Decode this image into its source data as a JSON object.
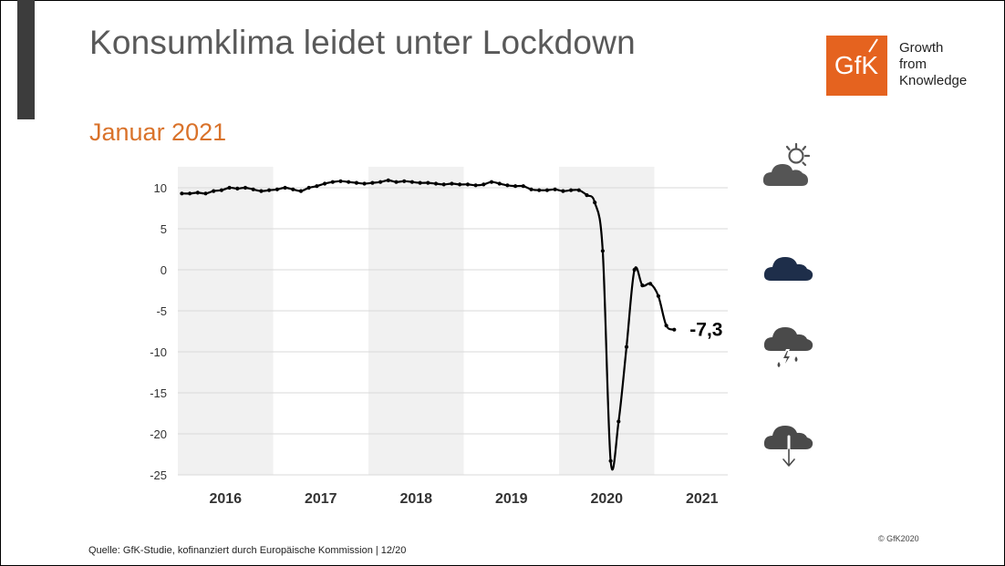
{
  "slide": {
    "title": "Konsumklima leidet unter Lockdown",
    "subtitle": "Januar 2021",
    "source": "Quelle: GfK-Studie, kofinanziert durch Europäische Kommission | 12/20",
    "copyright": "© GfK2020"
  },
  "logo": {
    "mark": "GfK",
    "lines": [
      "Growth",
      "from",
      "Knowledge"
    ],
    "color": "#e5631f"
  },
  "weather_icons": [
    "sun-cloud-icon",
    "cloud-icon",
    "thunder-rain-cloud-icon",
    "cloud-down-arrow-icon"
  ],
  "chart_data": {
    "type": "line",
    "x_start": "2016-01",
    "frequency": "monthly",
    "x_tick_labels": [
      "2016",
      "2017",
      "2018",
      "2019",
      "2020",
      "2021"
    ],
    "shaded_years": [
      "2016",
      "2018",
      "2020"
    ],
    "ylim": [
      -25,
      12
    ],
    "y_ticks": [
      10,
      5,
      0,
      -5,
      -10,
      -15,
      -20,
      -25
    ],
    "grid": true,
    "annotation": "-7,3",
    "line_color": "#000000",
    "values": [
      9.3,
      9.3,
      9.4,
      9.3,
      9.6,
      9.7,
      10.0,
      9.9,
      10.0,
      9.8,
      9.6,
      9.7,
      9.8,
      10.0,
      9.8,
      9.6,
      10.0,
      10.2,
      10.5,
      10.7,
      10.8,
      10.7,
      10.6,
      10.5,
      10.6,
      10.7,
      10.9,
      10.7,
      10.8,
      10.7,
      10.6,
      10.6,
      10.5,
      10.4,
      10.5,
      10.4,
      10.4,
      10.3,
      10.4,
      10.7,
      10.5,
      10.3,
      10.2,
      10.2,
      9.8,
      9.7,
      9.7,
      9.8,
      9.6,
      9.7,
      9.7,
      9.1,
      8.2,
      2.3,
      -23.3,
      -18.5,
      -9.4,
      0.0,
      -1.9,
      -1.7,
      -3.2,
      -6.8,
      -7.3
    ]
  }
}
